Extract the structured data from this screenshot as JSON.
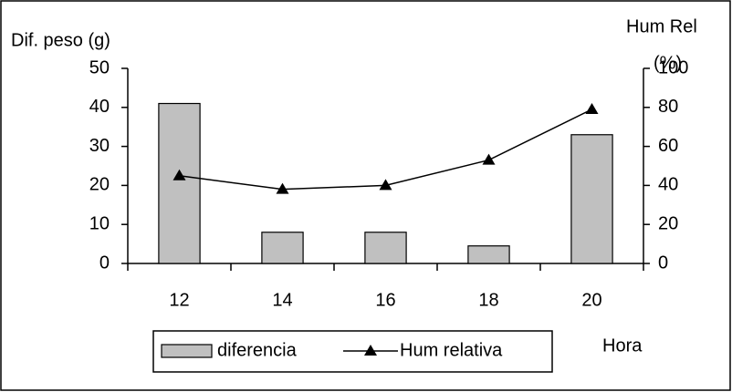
{
  "chart_data": {
    "type": "bar",
    "categories": [
      "12",
      "14",
      "16",
      "18",
      "20"
    ],
    "series": [
      {
        "name": "diferencia",
        "type": "bar",
        "color": "#c0c0c0",
        "values": [
          41,
          8,
          8,
          4.5,
          33
        ]
      },
      {
        "name": "Hum relativa",
        "type": "line",
        "axis": "y2",
        "color": "#000000",
        "values": [
          45,
          38,
          40,
          53,
          79
        ]
      }
    ],
    "ylabel": "Dif. peso (g)",
    "y2label": [
      "Hum Rel",
      "(%)"
    ],
    "xlabel": "Hora",
    "ylim": [
      0,
      50
    ],
    "yticks": [
      0,
      10,
      20,
      30,
      40,
      50
    ],
    "y2lim": [
      0,
      100
    ],
    "y2ticks": [
      0,
      20,
      40,
      60,
      80,
      100
    ],
    "grid": false,
    "legend": "bottom"
  }
}
